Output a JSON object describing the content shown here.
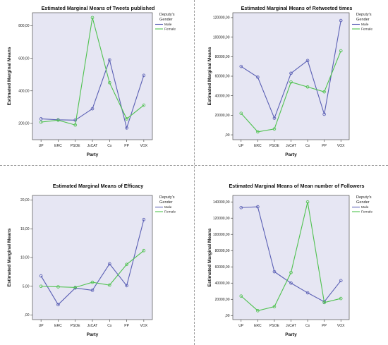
{
  "legend_title_line1": "Deputy's",
  "legend_title_line2": "Gender",
  "chart_data": [
    {
      "type": "line",
      "title": "Estimated Marginal Means of Tweets published",
      "xlabel": "Party",
      "ylabel": "Estimated Marginal Means",
      "categories": [
        "UP",
        "ERC",
        "PSOE",
        "JxCAT",
        "Cs",
        "PP",
        "VOX"
      ],
      "ylim": [
        100,
        880
      ],
      "yticks": [
        200,
        400,
        600,
        800
      ],
      "ytick_labels": [
        "200,00",
        "400,00",
        "600,00",
        "800,00"
      ],
      "series": [
        {
          "name": "Male",
          "color": "#5a5fb4",
          "values": [
            228,
            222,
            220,
            290,
            590,
            172,
            495
          ]
        },
        {
          "name": "Female",
          "color": "#4fc24f",
          "values": [
            208,
            220,
            190,
            850,
            450,
            228,
            312
          ]
        }
      ],
      "legend_position": "top-right",
      "grid": false
    },
    {
      "type": "line",
      "title": "Estimated Marginal Means of Retweeted times",
      "xlabel": "Party",
      "ylabel": "Estimated Marginal Means",
      "categories": [
        "UP",
        "ERC",
        "PSOE",
        "JxCAT",
        "Cs",
        "PP",
        "VOX"
      ],
      "ylim": [
        -5000,
        125000
      ],
      "yticks": [
        0,
        20000,
        40000,
        60000,
        80000,
        100000,
        120000
      ],
      "ytick_labels": [
        ",00",
        "20000,00",
        "40000,00",
        "60000,00",
        "80000,00",
        "100000,00",
        "120000,00"
      ],
      "series": [
        {
          "name": "Male",
          "color": "#5a5fb4",
          "values": [
            70000,
            59000,
            17000,
            63000,
            76000,
            21000,
            117000
          ]
        },
        {
          "name": "Female",
          "color": "#4fc24f",
          "values": [
            22000,
            3000,
            6000,
            54000,
            49000,
            44000,
            86000
          ]
        }
      ],
      "legend_position": "top-right",
      "grid": false
    },
    {
      "type": "line",
      "title": "Estimated Marginal Means of Efficacy",
      "xlabel": "Party",
      "ylabel": "Estimated Marginal Means",
      "categories": [
        "UP",
        "ERC",
        "PSOE",
        "JxCAT",
        "Cs",
        "PP",
        "VOX"
      ],
      "ylim": [
        -0.8,
        20.8
      ],
      "yticks": [
        0,
        5,
        10,
        15,
        20
      ],
      "ytick_labels": [
        ",00",
        "5,00",
        "10,00",
        "15,00",
        "20,00"
      ],
      "series": [
        {
          "name": "Male",
          "color": "#5a5fb4",
          "values": [
            6.8,
            1.8,
            4.7,
            4.3,
            8.9,
            5.1,
            16.6
          ]
        },
        {
          "name": "Female",
          "color": "#4fc24f",
          "values": [
            5.0,
            4.9,
            4.8,
            5.7,
            5.2,
            8.8,
            11.2
          ]
        }
      ],
      "legend_position": "top-right",
      "grid": false
    },
    {
      "type": "line",
      "title": "Estimated Marginal Means of Mean number of Followers",
      "xlabel": "Party",
      "ylabel": "Estimated Marginal Means",
      "categories": [
        "UP",
        "ERC",
        "PSOE",
        "JxCAT",
        "Cs",
        "PP",
        "VOX"
      ],
      "ylim": [
        -5000,
        148000
      ],
      "yticks": [
        0,
        20000,
        40000,
        60000,
        80000,
        100000,
        120000,
        140000
      ],
      "ytick_labels": [
        ",00",
        "20000,00",
        "40000,00",
        "60000,00",
        "80000,00",
        "100000,00",
        "120000,00",
        "140000,00"
      ],
      "series": [
        {
          "name": "Male",
          "color": "#5a5fb4",
          "values": [
            133000,
            134000,
            54000,
            40000,
            28000,
            17000,
            43000
          ]
        },
        {
          "name": "Female",
          "color": "#4fc24f",
          "values": [
            24000,
            6000,
            11000,
            53000,
            140000,
            16000,
            21000
          ]
        }
      ],
      "legend_position": "top-right",
      "grid": false
    }
  ]
}
